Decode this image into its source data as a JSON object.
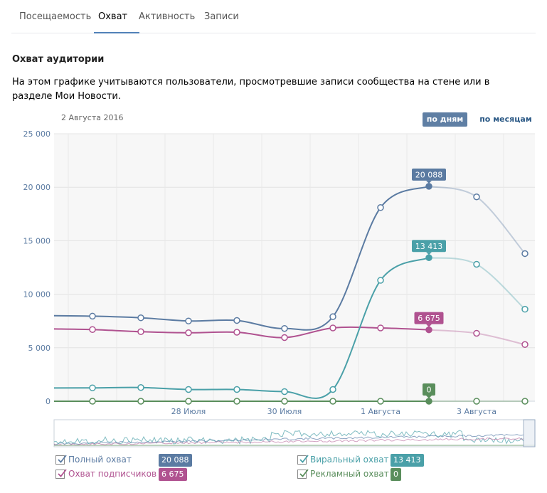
{
  "tabs": [
    {
      "label": "Посещаемость",
      "active": false
    },
    {
      "label": "Охват",
      "active": true
    },
    {
      "label": "Активность",
      "active": false
    },
    {
      "label": "Записи",
      "active": false
    }
  ],
  "section": {
    "title": "Охват аудитории",
    "description": "На этом графике учитываются пользователи, просмотревшие записи сообщества на стене или в разделе Мои Новости."
  },
  "chart_header": {
    "date": "2 Августа 2016",
    "period_buttons": {
      "days": "по дням",
      "months": "по месяцам",
      "selected": "days"
    }
  },
  "legend": [
    {
      "label": "Полный охват",
      "value": "20 088",
      "color": "#5b7ba2",
      "checked": true
    },
    {
      "label": "Охват подписчиков",
      "value": "6 675",
      "color": "#b05290",
      "checked": true
    },
    {
      "label": "Виральный охват",
      "value": "13 413",
      "color": "#4aa0a8",
      "checked": true
    },
    {
      "label": "Рекламный охват",
      "value": "0",
      "color": "#5a8e5c",
      "checked": true
    }
  ],
  "chart_data": {
    "type": "line",
    "x": [
      "26 Июля",
      "27 Июля",
      "28 Июля",
      "29 Июля",
      "30 Июля",
      "31 Июля",
      "1 Августа",
      "2 Августа",
      "3 Августа",
      "4 Августа"
    ],
    "x_tick_labels": [
      "28 Июля",
      "30 Июля",
      "1 Августа",
      "3 Августа"
    ],
    "y_tick_labels": [
      "0",
      "5 000",
      "10 000",
      "15 000",
      "20 000",
      "25 000"
    ],
    "ylim": [
      0,
      25000
    ],
    "grid": true,
    "selected_x": "2 Августа",
    "series": [
      {
        "name": "Полный охват",
        "color": "#5b7ba2",
        "values": [
          7950,
          7800,
          7500,
          7550,
          6800,
          7900,
          18100,
          20088,
          19100,
          13800
        ]
      },
      {
        "name": "Охват подписчиков",
        "color": "#b05290",
        "values": [
          6700,
          6500,
          6400,
          6450,
          5950,
          6850,
          6850,
          6675,
          6350,
          5300
        ]
      },
      {
        "name": "Виральный охват",
        "color": "#4aa0a8",
        "values": [
          1250,
          1280,
          1100,
          1100,
          900,
          1100,
          11300,
          13413,
          12800,
          8600
        ]
      },
      {
        "name": "Рекламный охват",
        "color": "#5a8e5c",
        "values": [
          0,
          0,
          0,
          0,
          0,
          0,
          0,
          0,
          0,
          0
        ]
      }
    ],
    "highlight_labels": [
      {
        "series": "Полный охват",
        "text": "20 088"
      },
      {
        "series": "Виральный охват",
        "text": "13 413"
      },
      {
        "series": "Охват подписчиков",
        "text": "6 675"
      },
      {
        "series": "Рекламный охват",
        "text": "0"
      }
    ]
  }
}
